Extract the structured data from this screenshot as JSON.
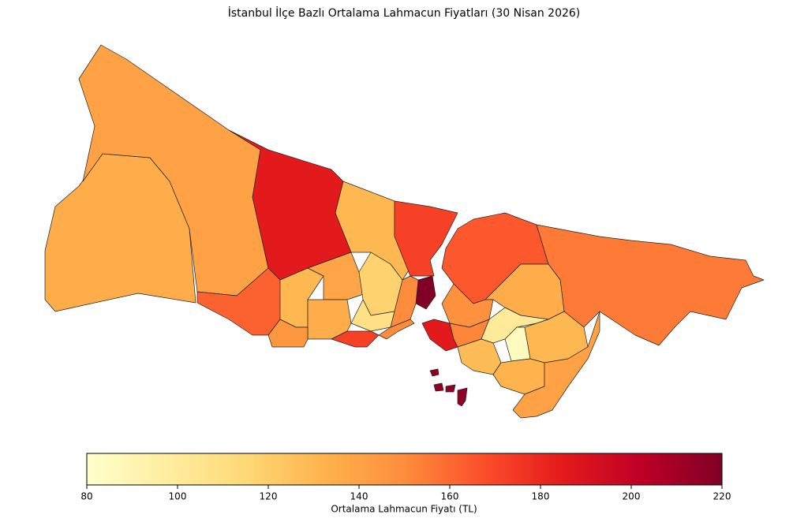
{
  "chart_data": {
    "type": "choropleth",
    "title": "İstanbul İlçe Bazlı Ortalama Lahmacun Fiyatları (30 Nisan 2026)",
    "values": [
      135,
      140,
      185,
      130,
      172,
      220,
      162,
      130,
      138,
      118,
      108,
      135,
      145,
      172,
      150,
      150,
      165,
      155,
      135,
      148,
      185,
      152,
      100,
      85,
      128,
      130,
      132,
      140,
      215,
      215,
      215,
      215
    ],
    "colormap": "YlOrRd",
    "clim": [
      80,
      220
    ],
    "cticks": [
      80,
      100,
      120,
      140,
      160,
      180,
      200,
      220
    ],
    "colorbar_label": "Ortalama Lahmacun Fiyatı (TL)"
  }
}
